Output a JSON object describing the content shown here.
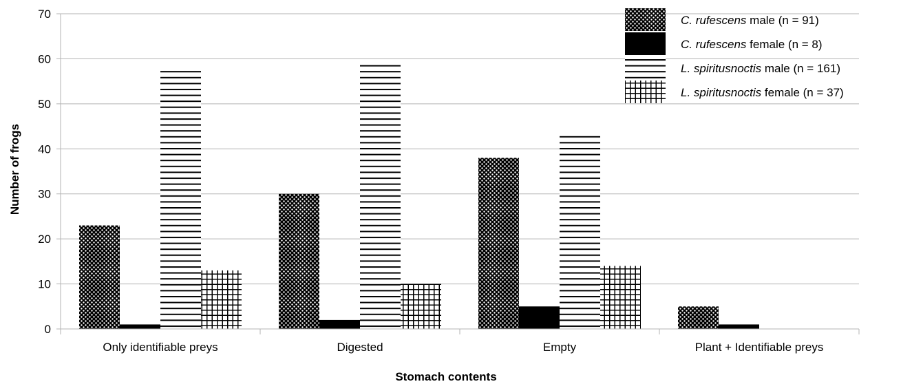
{
  "chart_data": {
    "type": "bar",
    "title": "",
    "xlabel": "Stomach contents",
    "ylabel": "Number of frogs",
    "categories": [
      "Only identifiable preys",
      "Digested",
      "Empty",
      "Plant + Identifiable preys"
    ],
    "ylim": [
      0,
      70
    ],
    "yticks": [
      0,
      10,
      20,
      30,
      40,
      50,
      60,
      70
    ],
    "grid": true,
    "legend_position": "top-right",
    "series": [
      {
        "species": "C. rufescens",
        "suffix": " male (n = 91)",
        "pattern": "dots",
        "values": [
          23,
          30,
          38,
          5
        ]
      },
      {
        "species": "C. rufescens",
        "suffix": " female (n = 8)",
        "pattern": "solid-black",
        "values": [
          1,
          2,
          5,
          1
        ]
      },
      {
        "species": "L. spiritusnoctis",
        "suffix": " male (n = 161)",
        "pattern": "horizontal-lines",
        "values": [
          58,
          59,
          43,
          0
        ]
      },
      {
        "species": "L. spiritusnoctis",
        "suffix": " female (n = 37)",
        "pattern": "grid",
        "values": [
          13,
          10,
          14,
          0
        ]
      }
    ]
  }
}
